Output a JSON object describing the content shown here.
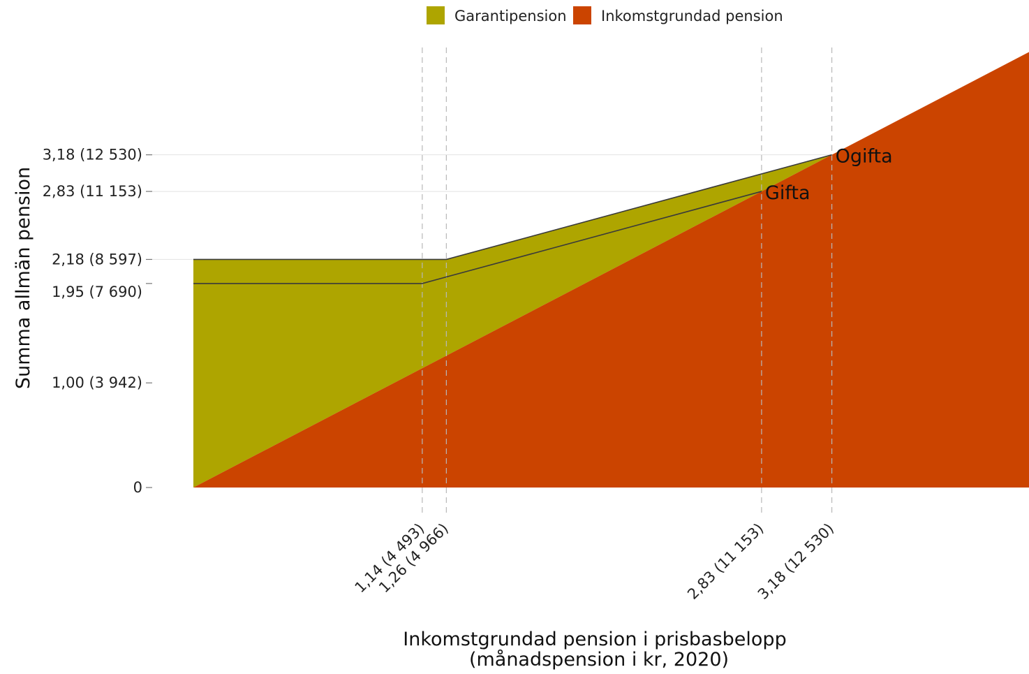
{
  "chart_data": {
    "type": "area",
    "xlabel": "Inkomstgrundad pension i prisbasbelopp",
    "xlabel_sub": "(månadspension i kr, 2020)",
    "ylabel": "Summa allmän pension",
    "xlim": [
      0,
      4.8
    ],
    "ylim": [
      0,
      4.15
    ],
    "legend": {
      "position": "top-center",
      "items": [
        {
          "name": "Garantipension",
          "color": "#aea500"
        },
        {
          "name": "Inkomstgrundad pension",
          "color": "#cb4400"
        }
      ]
    },
    "y_ticks": [
      {
        "value": 0,
        "label": "0"
      },
      {
        "value": 1.0,
        "label": "1,00 (3 942)"
      },
      {
        "value": 1.95,
        "label": "1,95 (7 690)"
      },
      {
        "value": 2.18,
        "label": "2,18 (8 597)"
      },
      {
        "value": 2.83,
        "label": "2,83 (11 153)"
      },
      {
        "value": 3.18,
        "label": "3,18 (12 530)"
      }
    ],
    "x_ticks": [
      {
        "value": 1.14,
        "label": "1,14 (4 493)"
      },
      {
        "value": 1.26,
        "label": "1,26 (4 966)"
      },
      {
        "value": 2.83,
        "label": "2,83 (11 153)"
      },
      {
        "value": 3.18,
        "label": "3,18 (12 530)"
      }
    ],
    "series": [
      {
        "name": "Garantipension",
        "color": "#aea500",
        "x": [
          0,
          1.26,
          3.18
        ],
        "y": [
          2.18,
          2.18,
          3.18
        ]
      },
      {
        "name": "Inkomstgrundad pension",
        "color": "#cb4400",
        "x": [
          0,
          4.8
        ],
        "y": [
          0,
          4.8
        ]
      }
    ],
    "lines": [
      {
        "name": "Ogifta",
        "x": [
          0,
          1.26,
          3.18
        ],
        "y": [
          2.18,
          2.18,
          3.18
        ]
      },
      {
        "name": "Gifta",
        "x": [
          0,
          1.14,
          2.83
        ],
        "y": [
          1.95,
          1.95,
          2.83
        ]
      }
    ],
    "annotations": [
      {
        "text": "Ogifta",
        "x": 3.18,
        "y": 3.18
      },
      {
        "text": "Gifta",
        "x": 2.83,
        "y": 2.83
      }
    ]
  }
}
